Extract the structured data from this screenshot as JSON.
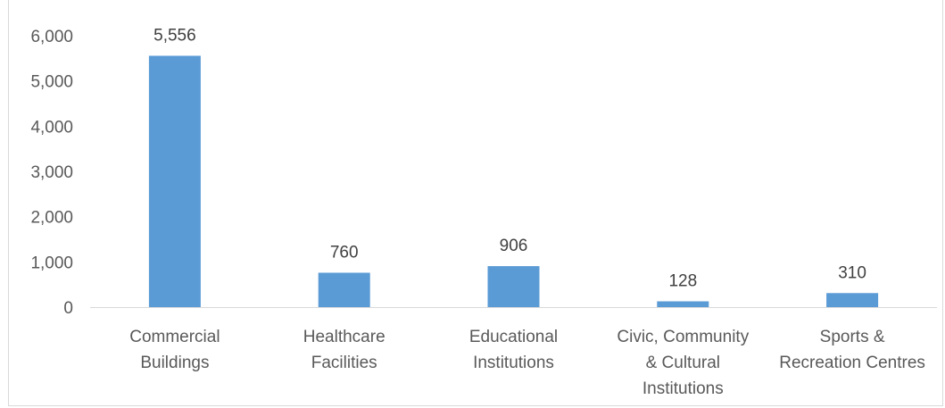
{
  "chart_data": {
    "type": "bar",
    "categories": [
      [
        "Commercial",
        "Buildings"
      ],
      [
        "Healthcare",
        "Facilities"
      ],
      [
        "Educational",
        "Institutions"
      ],
      [
        "Civic, Community",
        "& Cultural",
        "Institutions"
      ],
      [
        "Sports &",
        "Recreation Centres"
      ]
    ],
    "values": [
      5556,
      760,
      906,
      128,
      310
    ],
    "data_labels": [
      "5,556",
      "760",
      "906",
      "128",
      "310"
    ],
    "ylim": [
      0,
      6000
    ],
    "yticks": [
      0,
      1000,
      2000,
      3000,
      4000,
      5000,
      6000
    ],
    "ytick_labels": [
      "0",
      "1,000",
      "2,000",
      "3,000",
      "4,000",
      "5,000",
      "6,000"
    ],
    "title": "",
    "xlabel": "",
    "ylabel": "",
    "grid": false,
    "bar_color": "#5b9bd5",
    "axis_color": "#d9d9d9"
  }
}
